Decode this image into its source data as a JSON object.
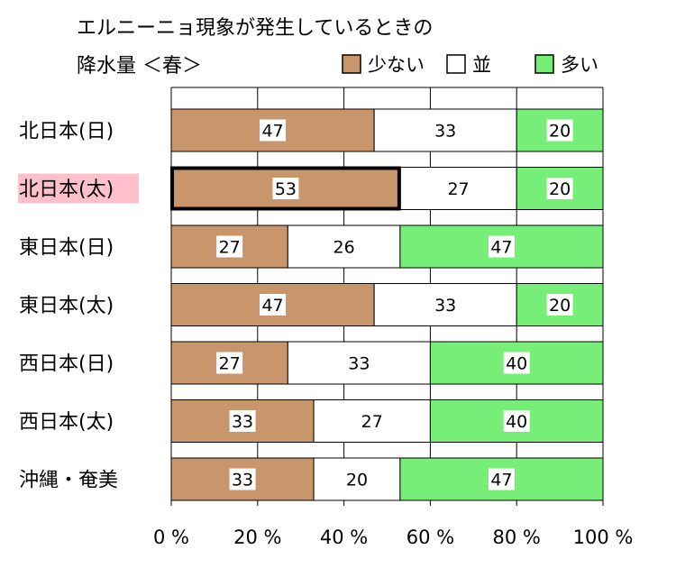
{
  "chart_data": {
    "type": "bar",
    "stacked": true,
    "orientation": "horizontal",
    "title_lines": [
      "エルニーニョ現象が発生しているときの",
      "降水量 ＜春＞"
    ],
    "categories": [
      "北日本(日)",
      "北日本(太)",
      "東日本(日)",
      "東日本(太)",
      "西日本(日)",
      "西日本(太)",
      "沖縄・奄美"
    ],
    "highlighted_category": "北日本(太)",
    "series": [
      {
        "name": "少ない",
        "color": "#c8966a",
        "values": [
          47,
          53,
          27,
          47,
          27,
          33,
          33
        ]
      },
      {
        "name": "並",
        "color": "#ffffff",
        "values": [
          33,
          27,
          26,
          33,
          33,
          27,
          20
        ]
      },
      {
        "name": "多い",
        "color": "#77ee77",
        "values": [
          20,
          20,
          47,
          20,
          40,
          40,
          47
        ]
      }
    ],
    "xlim": [
      0,
      100
    ],
    "x_ticks": [
      "0 %",
      "20 %",
      "40 %",
      "60 %",
      "80 %",
      "100 %"
    ],
    "grid": true,
    "legend_position": "top-right",
    "highlight_label_color": "#ffc0cb"
  }
}
